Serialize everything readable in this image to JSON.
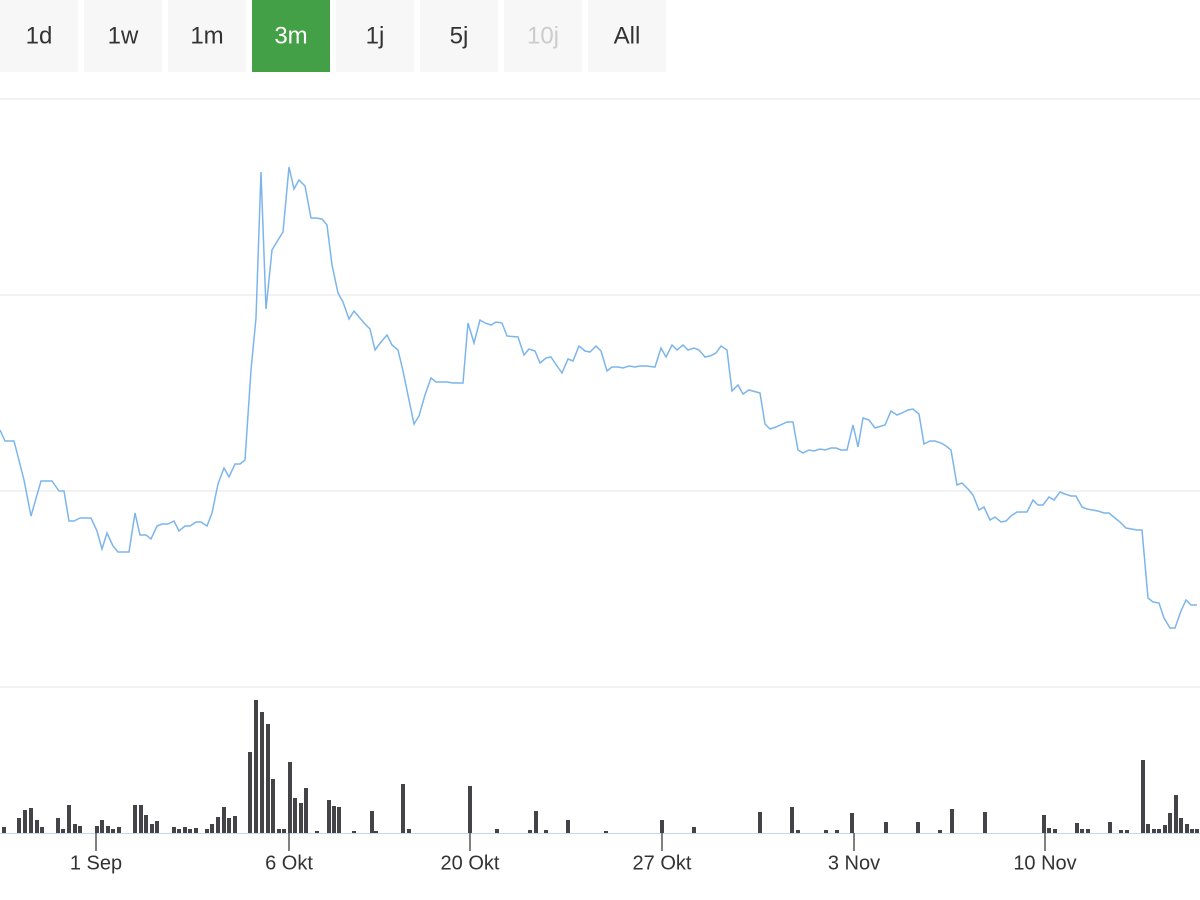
{
  "range_selector": {
    "buttons": [
      {
        "label": "1d",
        "state": "normal"
      },
      {
        "label": "1w",
        "state": "normal"
      },
      {
        "label": "1m",
        "state": "normal"
      },
      {
        "label": "3m",
        "state": "active"
      },
      {
        "label": "1j",
        "state": "normal"
      },
      {
        "label": "5j",
        "state": "normal"
      },
      {
        "label": "10j",
        "state": "disabled"
      },
      {
        "label": "All",
        "state": "normal"
      }
    ]
  },
  "chart_data": [
    {
      "type": "line",
      "color": "#7cb5ec",
      "grid": true,
      "xlim": [
        0,
        1200
      ],
      "ylim": [
        0,
        588
      ],
      "yticks": [
        0,
        196,
        392,
        588
      ],
      "x": [
        0,
        5,
        14,
        24,
        31,
        41,
        52,
        59,
        64,
        69,
        74,
        80,
        91,
        97,
        102,
        107,
        113,
        118,
        129,
        135,
        140,
        146,
        151,
        157,
        162,
        168,
        174,
        179,
        185,
        190,
        196,
        201,
        207,
        212,
        218,
        224,
        229,
        235,
        240,
        245,
        251,
        256,
        261,
        266,
        272,
        278,
        283,
        289,
        294,
        299,
        305,
        311,
        316,
        322,
        327,
        332,
        338,
        343,
        349,
        354,
        359,
        365,
        370,
        375,
        381,
        387,
        392,
        398,
        403,
        409,
        414,
        419,
        425,
        431,
        436,
        441,
        447,
        453,
        463,
        468,
        474,
        480,
        485,
        491,
        496,
        502,
        507,
        518,
        524,
        529,
        535,
        540,
        546,
        551,
        557,
        562,
        568,
        573,
        579,
        585,
        590,
        596,
        601,
        607,
        612,
        618,
        623,
        629,
        635,
        640,
        646,
        655,
        661,
        666,
        672,
        677,
        683,
        688,
        694,
        699,
        705,
        710,
        716,
        721,
        727,
        732,
        738,
        743,
        749,
        760,
        765,
        770,
        776,
        787,
        793,
        798,
        803,
        809,
        814,
        820,
        825,
        831,
        836,
        841,
        847,
        853,
        858,
        863,
        869,
        875,
        885,
        891,
        897,
        902,
        908,
        913,
        919,
        924,
        930,
        935,
        941,
        946,
        951,
        957,
        962,
        968,
        973,
        979,
        984,
        990,
        995,
        1001,
        1006,
        1011,
        1017,
        1027,
        1033,
        1038,
        1043,
        1049,
        1054,
        1060,
        1065,
        1071,
        1076,
        1082,
        1087,
        1098,
        1104,
        1109,
        1115,
        1120,
        1126,
        1137,
        1142,
        1148,
        1153,
        1159,
        1164,
        1170,
        1175,
        1181,
        1186,
        1191,
        1197
      ],
      "values": [
        257,
        246,
        246,
        207,
        171,
        206,
        206,
        196,
        196,
        166,
        166,
        169,
        169,
        156,
        138,
        154,
        141,
        135,
        135,
        174,
        152,
        152,
        148,
        161,
        163,
        163,
        166,
        156,
        161,
        161,
        165,
        165,
        161,
        174,
        203,
        219,
        210,
        223,
        223,
        227,
        317,
        369,
        515,
        378,
        437,
        447,
        455,
        520,
        498,
        507,
        501,
        469,
        469,
        468,
        462,
        422,
        394,
        385,
        368,
        376,
        370,
        363,
        358,
        337,
        345,
        352,
        342,
        337,
        316,
        287,
        263,
        271,
        292,
        309,
        305,
        305,
        305,
        304,
        304,
        364,
        344,
        367,
        364,
        362,
        365,
        364,
        351,
        350,
        332,
        338,
        336,
        324,
        329,
        330,
        321,
        314,
        328,
        326,
        341,
        336,
        335,
        341,
        336,
        316,
        320,
        320,
        319,
        321,
        320,
        321,
        321,
        320,
        339,
        330,
        342,
        337,
        342,
        337,
        339,
        337,
        330,
        331,
        334,
        341,
        337,
        296,
        302,
        293,
        297,
        294,
        263,
        258,
        260,
        265,
        265,
        237,
        234,
        237,
        236,
        238,
        237,
        239,
        239,
        237,
        237,
        262,
        240,
        269,
        267,
        259,
        262,
        276,
        272,
        274,
        277,
        278,
        273,
        243,
        246,
        246,
        244,
        241,
        237,
        202,
        204,
        198,
        192,
        177,
        180,
        167,
        170,
        165,
        166,
        171,
        175,
        175,
        187,
        182,
        182,
        190,
        187,
        195,
        193,
        191,
        191,
        180,
        178,
        176,
        174,
        174,
        169,
        165,
        159,
        157,
        157,
        89,
        85,
        84,
        69,
        59,
        59,
        76,
        87,
        82,
        82
      ]
    },
    {
      "type": "bar",
      "color": "#434348",
      "xlim": [
        0,
        1200
      ],
      "ylim": [
        0,
        140
      ],
      "xticks": [
        {
          "value": 96,
          "label": "1 Sep"
        },
        {
          "value": 289,
          "label": "6 Okt"
        },
        {
          "value": 470,
          "label": "20 Okt"
        },
        {
          "value": 662,
          "label": "27 Okt"
        },
        {
          "value": 854,
          "label": "3 Nov"
        },
        {
          "value": 1045,
          "label": "10 Nov"
        }
      ],
      "x": [
        4,
        19,
        25,
        31,
        37,
        42,
        58,
        63,
        69,
        75,
        80,
        97,
        102,
        108,
        113,
        119,
        135,
        141,
        146,
        152,
        157,
        174,
        179,
        185,
        190,
        196,
        207,
        212,
        218,
        224,
        229,
        235,
        250,
        256,
        262,
        268,
        273,
        279,
        284,
        290,
        295,
        301,
        306,
        317,
        329,
        334,
        339,
        354,
        372,
        376,
        403,
        409,
        470,
        497,
        530,
        536,
        546,
        568,
        606,
        662,
        694,
        760,
        792,
        798,
        826,
        837,
        852,
        886,
        918,
        940,
        952,
        985,
        1044,
        1049,
        1055,
        1077,
        1082,
        1088,
        1110,
        1121,
        1127,
        1143,
        1148,
        1154,
        1159,
        1165,
        1170,
        1176,
        1181,
        1187,
        1192,
        1197
      ],
      "values": [
        6,
        15,
        23,
        25,
        13,
        6,
        15,
        4,
        28,
        9,
        7,
        7,
        13,
        7,
        4,
        6,
        28,
        28,
        18,
        9,
        12,
        6,
        4,
        6,
        4,
        5,
        4,
        9,
        16,
        26,
        15,
        17,
        81,
        133,
        121,
        109,
        54,
        4,
        4,
        71,
        35,
        30,
        45,
        2,
        33,
        27,
        26,
        2,
        22,
        2,
        49,
        4,
        47,
        4,
        3,
        22,
        3,
        13,
        2,
        13,
        6,
        21,
        26,
        3,
        3,
        3,
        20,
        11,
        11,
        3,
        24,
        21,
        18,
        5,
        4,
        10,
        4,
        4,
        11,
        3,
        3,
        73,
        9,
        4,
        4,
        8,
        20,
        38,
        15,
        9,
        4,
        4
      ]
    }
  ]
}
